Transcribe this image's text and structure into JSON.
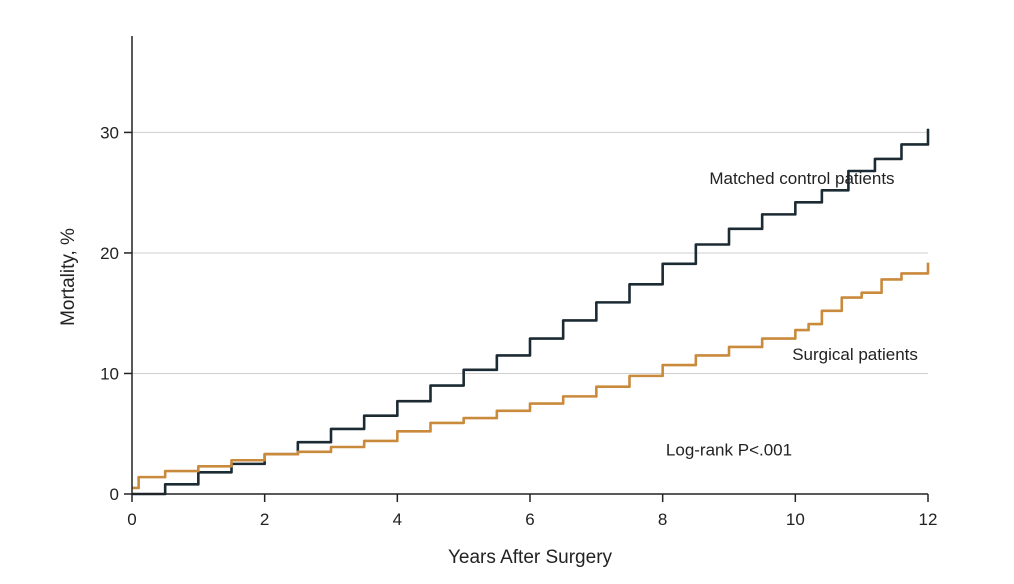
{
  "chart_data": {
    "type": "line",
    "xlabel": "Years After Surgery",
    "ylabel": "Mortality, %",
    "xlim": [
      0,
      12
    ],
    "ylim": [
      0,
      38
    ],
    "xticks": [
      0,
      2,
      4,
      6,
      8,
      10,
      12
    ],
    "yticks": [
      0,
      10,
      20,
      30
    ],
    "grid": "horizontal",
    "series": [
      {
        "name": "Matched control patients",
        "color": "#1c2b33",
        "x": [
          0,
          0.5,
          1,
          1.5,
          2,
          2.5,
          3,
          3.5,
          4,
          4.5,
          5,
          5.5,
          6,
          6.5,
          7,
          7.5,
          8,
          8.5,
          9,
          9.5,
          10,
          10.4,
          10.8,
          11.2,
          11.6,
          12
        ],
        "y": [
          0,
          0.8,
          1.8,
          2.5,
          3.3,
          4.3,
          5.4,
          6.5,
          7.7,
          9,
          10.3,
          11.5,
          12.9,
          14.4,
          15.9,
          17.4,
          19.1,
          20.7,
          22,
          23.2,
          24.2,
          25.2,
          26.8,
          27.8,
          29,
          30.3
        ]
      },
      {
        "name": "Surgical patients",
        "color": "#c98a3c",
        "x": [
          0,
          0.1,
          0.5,
          1,
          1.5,
          2,
          2.5,
          3,
          3.5,
          4,
          4.5,
          5,
          5.5,
          6,
          6.5,
          7,
          7.5,
          8,
          8.5,
          9,
          9.5,
          10,
          10.2,
          10.4,
          10.7,
          11,
          11.3,
          11.6,
          12
        ],
        "y": [
          0.5,
          1.4,
          1.9,
          2.3,
          2.8,
          3.3,
          3.5,
          3.9,
          4.4,
          5.2,
          5.9,
          6.3,
          6.9,
          7.5,
          8.1,
          8.9,
          9.8,
          10.7,
          11.5,
          12.2,
          12.9,
          13.6,
          14.1,
          15.2,
          16.3,
          16.7,
          17.8,
          18.3,
          19.2
        ]
      }
    ],
    "annotations": [
      {
        "text": "Matched control patients",
        "x": 10.1,
        "y": 25.7
      },
      {
        "text": "Surgical patients",
        "x": 10.9,
        "y": 11.1
      },
      {
        "text": "Log-rank P<.001",
        "x": 9,
        "y": 3.2
      }
    ]
  }
}
